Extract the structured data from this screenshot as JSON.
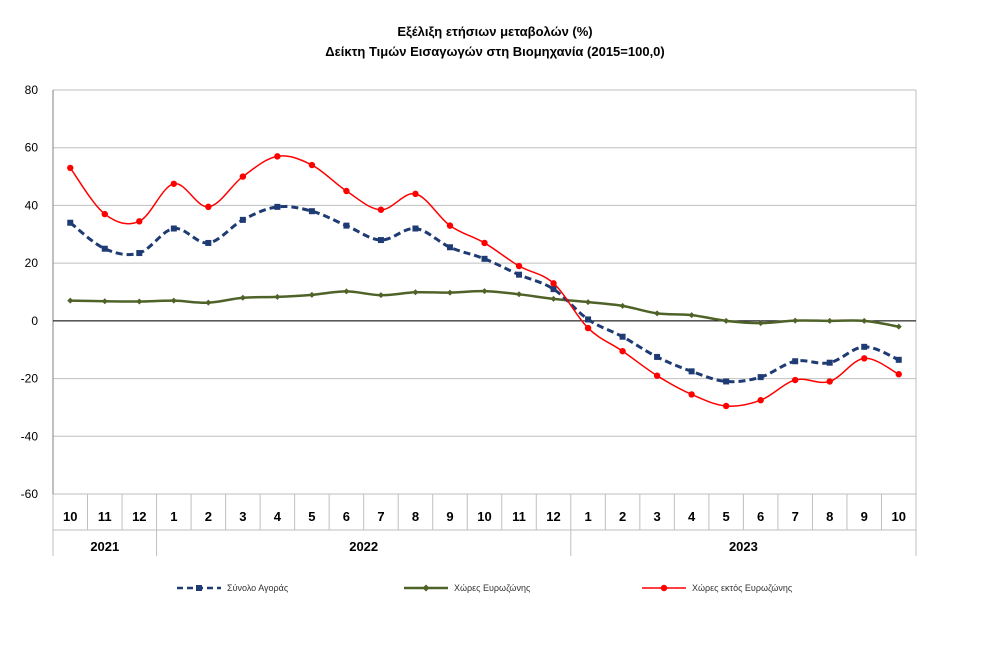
{
  "chart_data": {
    "type": "line",
    "title_line1": "Εξέλιξη ετήσιων μεταβολών (%)",
    "title_line2": "Δείκτη Τιμών Εισαγωγών στη Βιομηχανία (2015=100,0)",
    "months": [
      "10",
      "11",
      "12",
      "1",
      "2",
      "3",
      "4",
      "5",
      "6",
      "7",
      "8",
      "9",
      "10",
      "11",
      "12",
      "1",
      "2",
      "3",
      "4",
      "5",
      "6",
      "7",
      "8",
      "9",
      "10"
    ],
    "years": [
      {
        "label": "2021",
        "start": 0,
        "end": 2
      },
      {
        "label": "2022",
        "start": 3,
        "end": 14
      },
      {
        "label": "2023",
        "start": 15,
        "end": 24
      }
    ],
    "ylim": [
      -60,
      80
    ],
    "yticks": [
      -60,
      -40,
      -20,
      0,
      20,
      40,
      60,
      80
    ],
    "grid": true,
    "legend_position": "bottom",
    "series": [
      {
        "name": "Σύνολο Αγοράς",
        "color": "#1F3B73",
        "style": "dashed",
        "marker": "square",
        "values": [
          34,
          25,
          23.5,
          32,
          27,
          35,
          39.5,
          38,
          33,
          28,
          32,
          25.5,
          21.5,
          16,
          11,
          0.5,
          -5.5,
          -12.5,
          -17.5,
          -21,
          -19.5,
          -14,
          -14.5,
          -9,
          -13.5
        ]
      },
      {
        "name": "Χώρες Ευρωζώνης",
        "color": "#4F6228",
        "style": "solid",
        "marker": "diamond",
        "values": [
          7,
          6.8,
          6.7,
          7,
          6.3,
          8,
          8.3,
          9,
          10.2,
          8.9,
          9.9,
          9.8,
          10.3,
          9.2,
          7.6,
          6.5,
          5.2,
          2.6,
          2,
          0,
          -0.8,
          0.1,
          0,
          0,
          -2
        ]
      },
      {
        "name": "Χώρες εκτός Ευρωζώνης",
        "color": "#FF0000",
        "style": "solid",
        "marker": "circle",
        "values": [
          53,
          37,
          34.5,
          47.5,
          39.5,
          50,
          57,
          54,
          45,
          38.5,
          44,
          33,
          27,
          19,
          13,
          -2.5,
          -10.5,
          -19,
          -25.5,
          -29.5,
          -27.5,
          -20.5,
          -21,
          -13,
          -18.5
        ]
      }
    ]
  }
}
